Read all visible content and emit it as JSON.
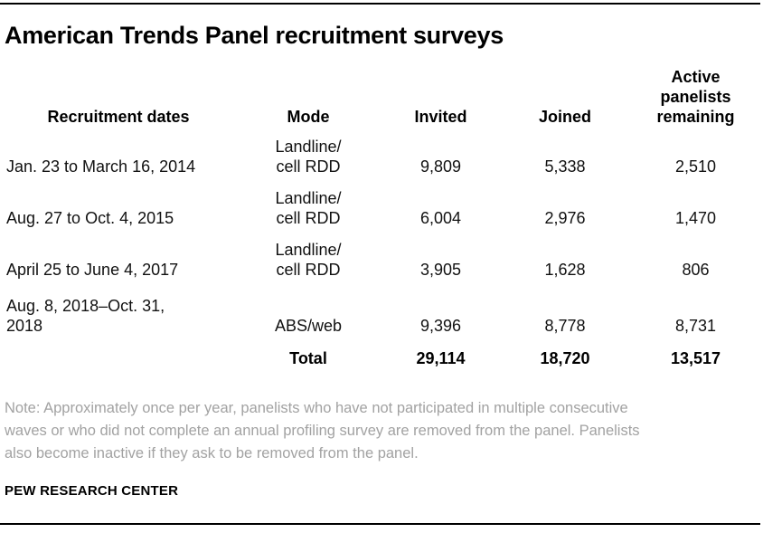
{
  "page": {
    "title": "American Trends Panel recruitment surveys",
    "note": "Note: Approximately once per year, panelists who have not participated in multiple consecutive waves or who did not complete an annual profiling survey are removed from the panel. Panelists also become inactive if they ask to be removed from the panel.",
    "source": "PEW RESEARCH CENTER"
  },
  "table": {
    "headers": {
      "dates": "Recruitment dates",
      "mode": "Mode",
      "invited": "Invited",
      "joined": "Joined",
      "active": "Active panelists remaining"
    },
    "rows": [
      {
        "dates": "Jan. 23 to March 16, 2014",
        "mode": "Landline/ cell RDD",
        "invited": "9,809",
        "joined": "5,338",
        "active": "2,510"
      },
      {
        "dates": "Aug. 27 to Oct. 4, 2015",
        "mode": "Landline/ cell RDD",
        "invited": "6,004",
        "joined": "2,976",
        "active": "1,470"
      },
      {
        "dates": "April 25 to June 4, 2017",
        "mode": "Landline/ cell RDD",
        "invited": "3,905",
        "joined": "1,628",
        "active": "806"
      },
      {
        "dates": "Aug. 8, 2018–Oct. 31, 2018",
        "mode": "ABS/web",
        "invited": "9,396",
        "joined": "8,778",
        "active": "8,731"
      }
    ],
    "total": {
      "label": "Total",
      "invited": "29,114",
      "joined": "18,720",
      "active": "13,517"
    }
  },
  "chart_data": {
    "type": "table",
    "title": "American Trends Panel recruitment surveys",
    "columns": [
      "Recruitment dates",
      "Mode",
      "Invited",
      "Joined",
      "Active panelists remaining"
    ],
    "rows": [
      [
        "Jan. 23 to March 16, 2014",
        "Landline/cell RDD",
        9809,
        5338,
        2510
      ],
      [
        "Aug. 27 to Oct. 4, 2015",
        "Landline/cell RDD",
        6004,
        2976,
        1470
      ],
      [
        "April 25 to June 4, 2017",
        "Landline/cell RDD",
        3905,
        1628,
        806
      ],
      [
        "Aug. 8, 2018–Oct. 31, 2018",
        "ABS/web",
        9396,
        8778,
        8731
      ]
    ],
    "total_row": [
      "Total",
      29114,
      18720,
      13517
    ],
    "note": "Note: Approximately once per year, panelists who have not participated in multiple consecutive waves or who did not complete an annual profiling survey are removed from the panel. Panelists also become inactive if they ask to be removed from the panel.",
    "source": "PEW RESEARCH CENTER"
  },
  "colors": {
    "title_text": "#000000",
    "body_text": "#111111",
    "note_text": "#a2a2a2",
    "rule": "#000000",
    "background": "#ffffff"
  }
}
